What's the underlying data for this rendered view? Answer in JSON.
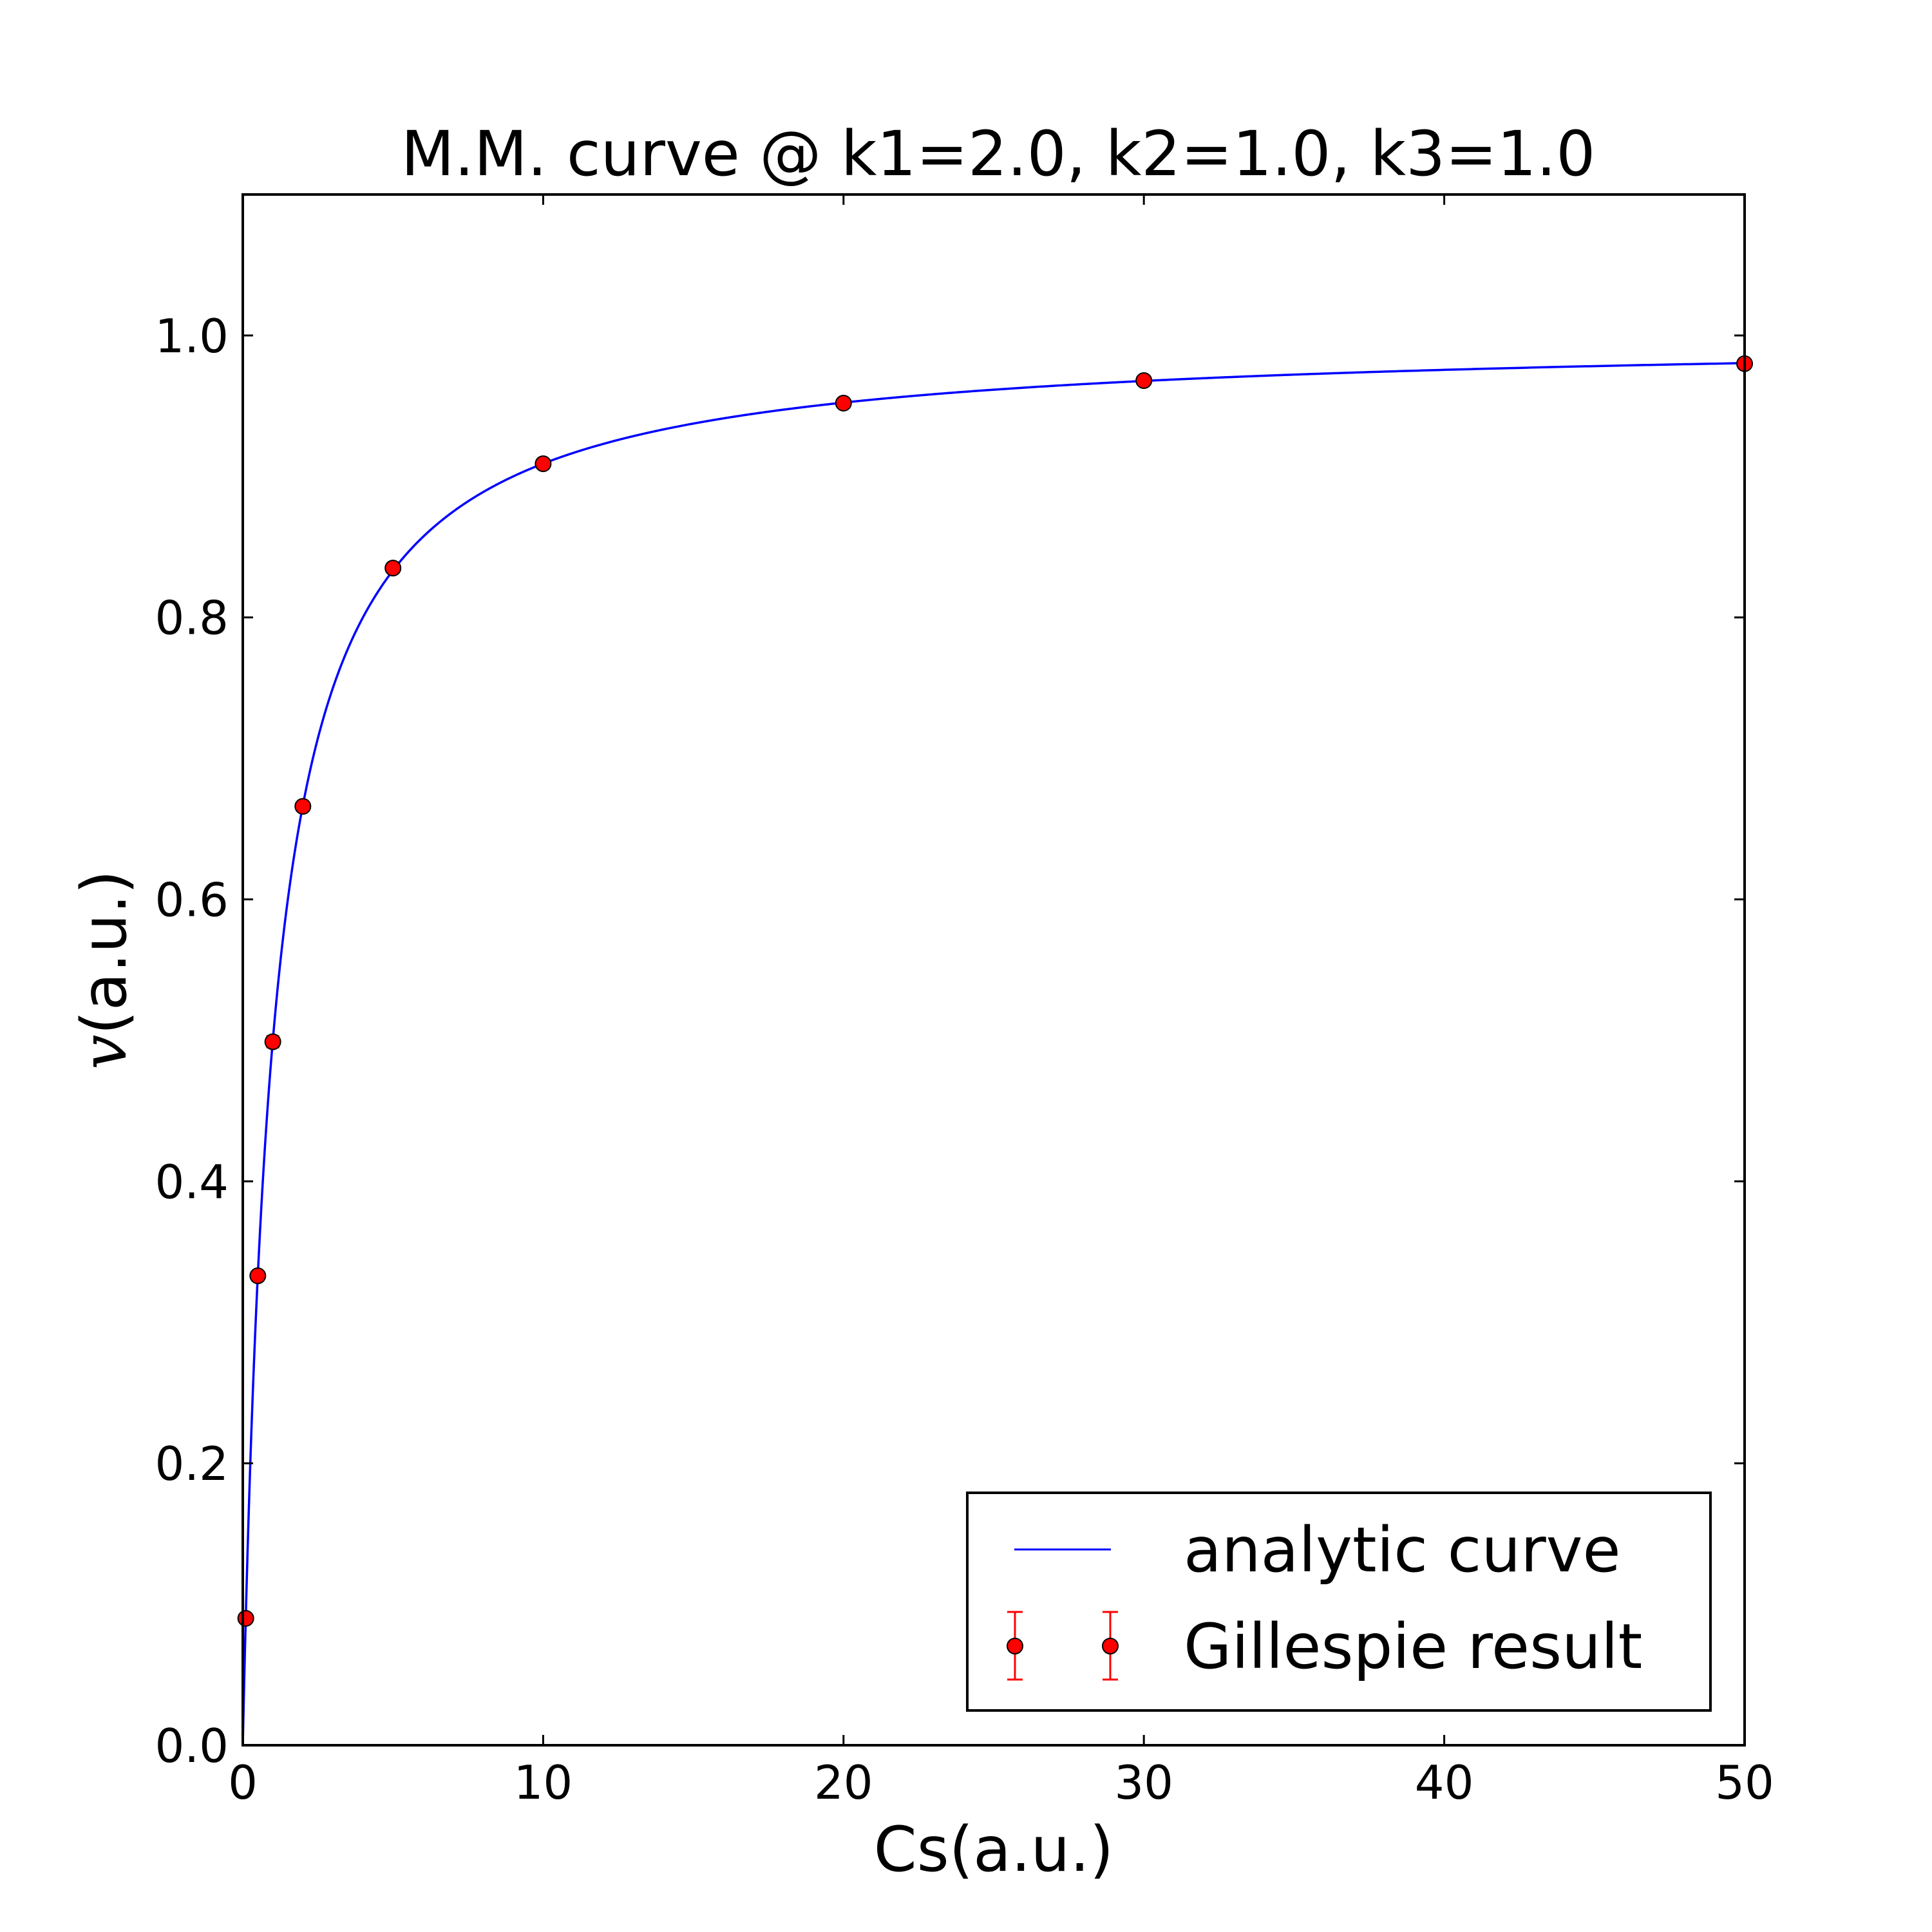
{
  "chart_data": {
    "type": "scatter",
    "title": "M.M. curve @ k1=2.0, k2=1.0, k3=1.0",
    "xlabel": "Cs(a.u.)",
    "ylabel_symbol": "v",
    "ylabel_unit": "(a.u.)",
    "xlim": [
      0,
      50
    ],
    "ylim": [
      0,
      1.1
    ],
    "x_ticks": [
      "0",
      "10",
      "20",
      "30",
      "40",
      "50"
    ],
    "y_ticks": [
      "0.0",
      "0.2",
      "0.4",
      "0.6",
      "0.8",
      "1.0"
    ],
    "grid": false,
    "legend_position": "lower-right",
    "series": [
      {
        "name": "analytic curve",
        "kind": "line",
        "color": "#0000ff",
        "formula": "x / (1 + x)",
        "x_range": [
          0,
          50
        ]
      },
      {
        "name": "Gillespie result",
        "kind": "errorbar-points",
        "color": "#ff0000",
        "x": [
          0.1,
          0.5,
          1,
          2,
          5,
          10,
          20,
          30,
          50
        ],
        "y": [
          0.09,
          0.333,
          0.499,
          0.666,
          0.835,
          0.909,
          0.952,
          0.968,
          0.98
        ],
        "yerr": [
          0.003,
          0.003,
          0.004,
          0.003,
          0.003,
          0.002,
          0.002,
          0.002,
          0.002
        ]
      }
    ]
  }
}
